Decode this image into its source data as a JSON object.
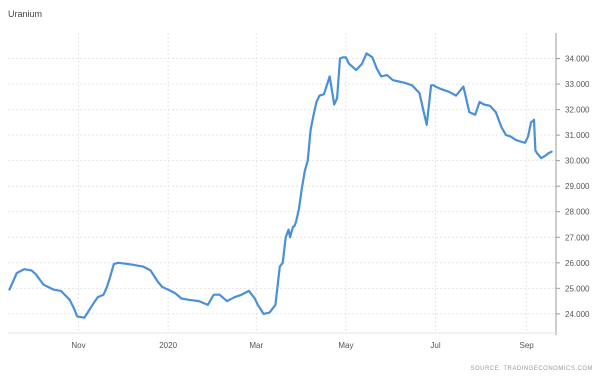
{
  "chart_data": {
    "type": "line",
    "title": "Uranium",
    "source": "SOURCE: TRADINGECONOMICS.COM",
    "xlabel": "",
    "ylabel": "",
    "ylim": [
      23.25,
      35.0
    ],
    "yticks": [
      "24.000",
      "25.000",
      "26.000",
      "27.000",
      "28.000",
      "29.000",
      "30.000",
      "31.000",
      "32.000",
      "33.000",
      "34.000"
    ],
    "ytick_values": [
      24,
      25,
      26,
      27,
      28,
      29,
      30,
      31,
      32,
      33,
      34
    ],
    "xticks": [
      "Nov",
      "2020",
      "Mar",
      "May",
      "Jul",
      "Sep"
    ],
    "xtick_dates": [
      "2019-11-01",
      "2020-01-01",
      "2020-03-01",
      "2020-05-01",
      "2020-07-01",
      "2020-09-01"
    ],
    "xlim": [
      "2019-09-14",
      "2020-09-21"
    ],
    "grid": true,
    "legend": "none",
    "line_color": "#4a90d9",
    "series": [
      {
        "x": [
          "2019-09-15",
          "2019-09-20",
          "2019-09-25",
          "2019-09-30",
          "2019-10-03",
          "2019-10-08",
          "2019-10-15",
          "2019-10-20",
          "2019-10-26",
          "2019-10-29",
          "2019-10-31",
          "2019-11-05",
          "2019-11-10",
          "2019-11-14",
          "2019-11-18",
          "2019-11-20",
          "2019-11-22",
          "2019-11-25",
          "2019-11-28",
          "2019-12-05",
          "2019-12-10",
          "2019-12-15",
          "2019-12-20",
          "2019-12-25",
          "2019-12-28",
          "2020-01-01",
          "2020-01-06",
          "2020-01-10",
          "2020-01-15",
          "2020-01-22",
          "2020-01-28",
          "2020-02-01",
          "2020-02-05",
          "2020-02-10",
          "2020-02-15",
          "2020-02-20",
          "2020-02-25",
          "2020-02-29",
          "2020-03-02",
          "2020-03-06",
          "2020-03-10",
          "2020-03-14",
          "2020-03-17",
          "2020-03-19",
          "2020-03-21",
          "2020-03-23",
          "2020-03-24",
          "2020-03-25",
          "2020-03-26",
          "2020-03-27",
          "2020-03-28",
          "2020-03-30",
          "2020-04-01",
          "2020-04-03",
          "2020-04-05",
          "2020-04-07",
          "2020-04-09",
          "2020-04-11",
          "2020-04-13",
          "2020-04-16",
          "2020-04-20",
          "2020-04-23",
          "2020-04-25",
          "2020-04-27",
          "2020-04-29",
          "2020-05-01",
          "2020-05-03",
          "2020-05-08",
          "2020-05-12",
          "2020-05-15",
          "2020-05-19",
          "2020-05-22",
          "2020-05-25",
          "2020-05-29",
          "2020-06-02",
          "2020-06-06",
          "2020-06-10",
          "2020-06-15",
          "2020-06-20",
          "2020-06-25",
          "2020-06-28",
          "2020-06-29",
          "2020-06-30",
          "2020-07-01",
          "2020-07-05",
          "2020-07-10",
          "2020-07-15",
          "2020-07-20",
          "2020-07-24",
          "2020-07-28",
          "2020-07-31",
          "2020-08-03",
          "2020-08-07",
          "2020-08-11",
          "2020-08-15",
          "2020-08-18",
          "2020-08-21",
          "2020-08-25",
          "2020-08-28",
          "2020-08-31",
          "2020-09-02",
          "2020-09-04",
          "2020-09-06",
          "2020-09-07",
          "2020-09-08",
          "2020-09-11",
          "2020-09-14",
          "2020-09-16",
          "2020-09-18"
        ],
        "values": [
          24.95,
          25.6,
          25.75,
          25.7,
          25.55,
          25.15,
          24.95,
          24.9,
          24.55,
          24.2,
          23.9,
          23.85,
          24.3,
          24.65,
          24.75,
          25.0,
          25.35,
          25.95,
          26.0,
          25.95,
          25.9,
          25.85,
          25.7,
          25.25,
          25.05,
          24.95,
          24.8,
          24.6,
          24.55,
          24.5,
          24.35,
          24.75,
          24.75,
          24.5,
          24.65,
          24.75,
          24.9,
          24.6,
          24.35,
          24.0,
          24.05,
          24.35,
          25.85,
          26.0,
          27.0,
          27.3,
          27.0,
          27.2,
          27.4,
          27.45,
          27.6,
          28.1,
          28.9,
          29.6,
          30.0,
          31.2,
          31.8,
          32.3,
          32.55,
          32.6,
          33.3,
          32.2,
          32.45,
          34.0,
          34.05,
          34.05,
          33.8,
          33.55,
          33.8,
          34.2,
          34.05,
          33.6,
          33.3,
          33.35,
          33.15,
          33.1,
          33.05,
          32.95,
          32.65,
          31.4,
          32.95,
          32.95,
          32.95,
          32.9,
          32.8,
          32.7,
          32.55,
          32.9,
          31.9,
          31.8,
          32.3,
          32.2,
          32.15,
          31.9,
          31.3,
          31.0,
          30.95,
          30.8,
          30.75,
          30.7,
          30.95,
          31.5,
          31.6,
          30.4,
          30.3,
          30.1,
          30.2,
          30.3,
          30.35
        ]
      }
    ]
  }
}
